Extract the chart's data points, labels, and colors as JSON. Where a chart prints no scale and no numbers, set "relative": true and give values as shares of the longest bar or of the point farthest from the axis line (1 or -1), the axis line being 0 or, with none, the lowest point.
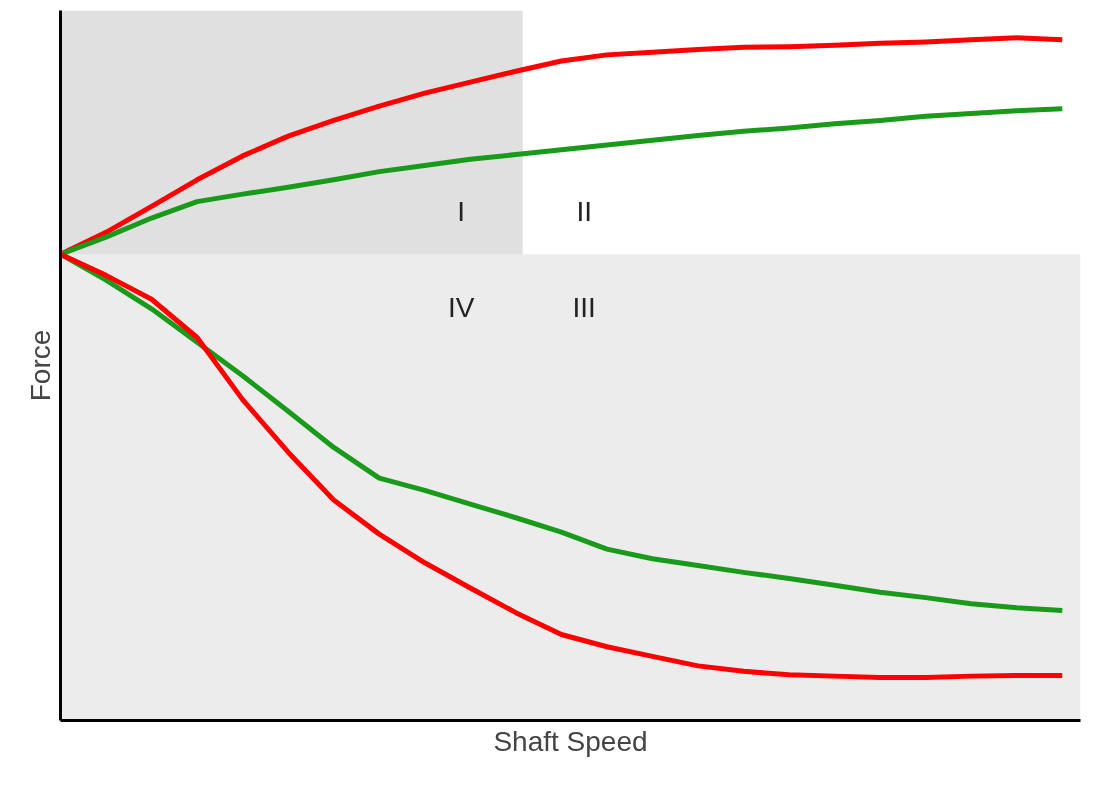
{
  "chart_data": {
    "type": "line",
    "xlabel": "Shaft Speed",
    "ylabel": "Force",
    "relative": true,
    "line_style": "solid",
    "marker": "none",
    "categories": [
      null,
      null,
      null,
      null,
      null,
      null,
      null,
      null,
      null,
      null,
      null,
      null,
      null,
      null,
      null,
      null,
      null,
      null,
      null,
      null,
      null,
      null,
      null
    ],
    "series": [
      {
        "color": "#ff0000",
        "values": [
          0.683,
          0.715,
          0.753,
          0.792,
          0.827,
          0.856,
          0.879,
          0.9,
          0.919,
          0.935,
          0.951,
          0.966,
          0.975,
          0.979,
          0.983,
          0.986,
          0.987,
          0.989,
          0.992,
          0.994,
          0.997,
          1,
          0.997
        ]
      },
      {
        "color": "#1a9a1a",
        "values": [
          0.683,
          0.708,
          0.736,
          0.76,
          0.771,
          0.781,
          0.792,
          0.804,
          0.813,
          0.822,
          0.829,
          0.836,
          0.843,
          0.85,
          0.857,
          0.863,
          0.868,
          0.874,
          0.879,
          0.885,
          0.889,
          0.893,
          0.896
        ]
      },
      {
        "color": "#1a9a1a",
        "values": [
          0.683,
          0.645,
          0.603,
          0.554,
          0.505,
          0.453,
          0.4,
          0.355,
          0.337,
          0.317,
          0.297,
          0.276,
          0.251,
          0.237,
          0.227,
          0.217,
          0.208,
          0.198,
          0.188,
          0.18,
          0.171,
          0.165,
          0.161
        ]
      },
      {
        "color": "#ff0000",
        "values": [
          0.683,
          0.652,
          0.617,
          0.561,
          0.47,
          0.393,
          0.323,
          0.273,
          0.231,
          0.194,
          0.158,
          0.126,
          0.108,
          0.094,
          0.08,
          0.072,
          0.067,
          0.065,
          0.063,
          0.063,
          0.065,
          0.066,
          0.066
        ]
      }
    ],
    "bands": [
      {
        "axis": "y",
        "from": 0,
        "to": 0.683,
        "color": "#ececec"
      }
    ],
    "annotations": [
      "I",
      "II",
      "III",
      "IV"
    ]
  }
}
